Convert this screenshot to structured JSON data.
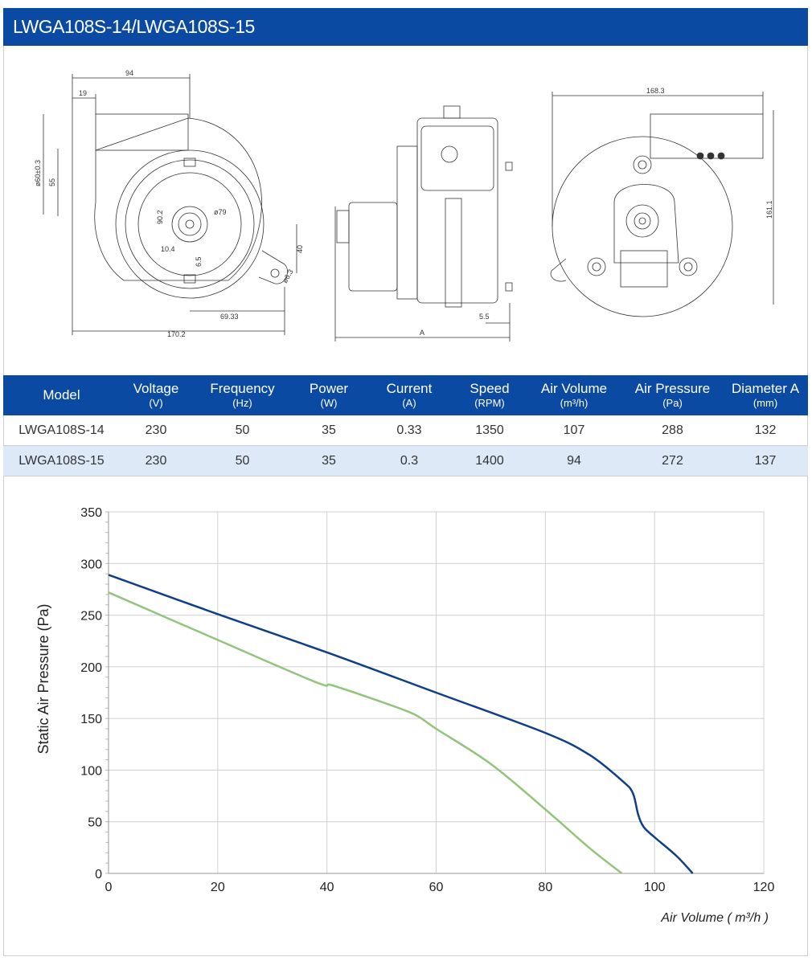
{
  "title": "LWGA108S-14/LWGA108S-15",
  "drawings": {
    "front_dims": {
      "width_top": "94",
      "offset_19": "19",
      "dia_outlet": "ø60±0.3",
      "h55": "55",
      "d90_2": "90.2",
      "d79": "ø79",
      "d10_4": "10.4",
      "d6_5": "6.5",
      "h40": "40",
      "dia_hole": "ø6.3",
      "w69_33": "69.33",
      "width_total": "170.2"
    },
    "side_dims": {
      "dim_a": "A",
      "dim_5_5": "5.5"
    },
    "back_dims": {
      "width_168_3": "168.3",
      "height_161_1": "161.1"
    }
  },
  "table": {
    "headers": [
      {
        "label": "Model",
        "unit": ""
      },
      {
        "label": "Voltage",
        "unit": "(V)"
      },
      {
        "label": "Frequency",
        "unit": "(Hz)"
      },
      {
        "label": "Power",
        "unit": "(W)"
      },
      {
        "label": "Current",
        "unit": "(A)"
      },
      {
        "label": "Speed",
        "unit": "(RPM)"
      },
      {
        "label": "Air Volume",
        "unit": "(m³/h)"
      },
      {
        "label": "Air Pressure",
        "unit": "(Pa)"
      },
      {
        "label": "Diameter A",
        "unit": "(mm)"
      }
    ],
    "rows": [
      [
        "LWGA108S-14",
        "230",
        "50",
        "35",
        "0.33",
        "1350",
        "107",
        "288",
        "132"
      ],
      [
        "LWGA108S-15",
        "230",
        "50",
        "35",
        "0.3",
        "1400",
        "94",
        "272",
        "137"
      ]
    ]
  },
  "chart_data": {
    "type": "line",
    "title": "",
    "xlabel": "Air Volume ( m³/h )",
    "ylabel": "Static Air Pressure  (Pa)",
    "xlim": [
      0,
      120
    ],
    "ylim": [
      0,
      350
    ],
    "x_ticks": [
      0,
      20,
      40,
      60,
      80,
      100,
      120
    ],
    "y_ticks": [
      0,
      50,
      100,
      150,
      200,
      250,
      300,
      350
    ],
    "grid": true,
    "series": [
      {
        "color": "#0f3f86",
        "points": [
          [
            0,
            289
          ],
          [
            20,
            251
          ],
          [
            40,
            214
          ],
          [
            60,
            175
          ],
          [
            80,
            136
          ],
          [
            88,
            115
          ],
          [
            94,
            90
          ],
          [
            96,
            78
          ],
          [
            97,
            57
          ],
          [
            98,
            45
          ],
          [
            100,
            35
          ],
          [
            104,
            17
          ],
          [
            107,
            0
          ]
        ]
      },
      {
        "color": "#93c47d",
        "points": [
          [
            0,
            272
          ],
          [
            20,
            226
          ],
          [
            38,
            185
          ],
          [
            41,
            182
          ],
          [
            50,
            166
          ],
          [
            56,
            154
          ],
          [
            60,
            140
          ],
          [
            70,
            106
          ],
          [
            80,
            62
          ],
          [
            88,
            25
          ],
          [
            94,
            0
          ]
        ]
      }
    ]
  }
}
